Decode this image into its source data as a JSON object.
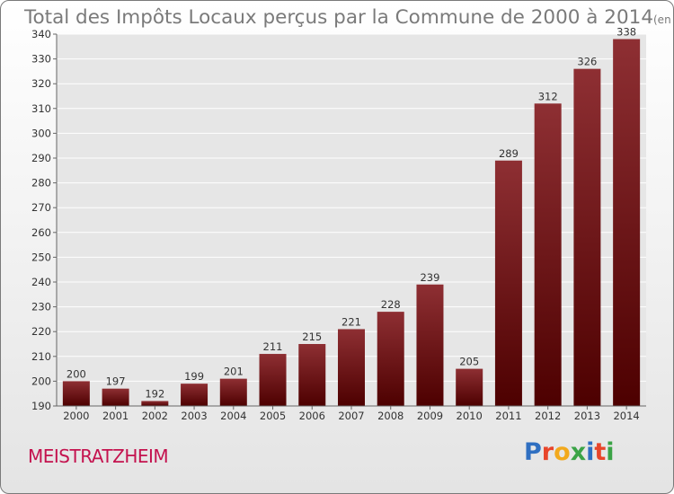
{
  "header": {
    "title": "Total des Impôts Locaux perçus par la Commune de 2000 à 2014",
    "unit_note": "(en milliers d'€)"
  },
  "commune_name": "MEISTRATZHEIM",
  "logo": {
    "text": "Proxiti",
    "letter_colors": [
      "#2f6fc1",
      "#e8452a",
      "#f2a91d",
      "#3aa346",
      "#2f6fc1",
      "#e8452a",
      "#3aa346"
    ]
  },
  "colors": {
    "bar_top": "#8e2f33",
    "bar_bottom": "#4d0000",
    "grid": "#ffffff",
    "text": "#333333"
  },
  "chart_data": {
    "type": "bar",
    "title": "Total des Impôts Locaux perçus par la Commune de 2000 à 2014",
    "xlabel": "",
    "ylabel": "",
    "categories": [
      "2000",
      "2001",
      "2002",
      "2003",
      "2004",
      "2005",
      "2006",
      "2007",
      "2008",
      "2009",
      "2010",
      "2011",
      "2012",
      "2013",
      "2014"
    ],
    "values": [
      200,
      197,
      192,
      199,
      201,
      211,
      215,
      221,
      228,
      239,
      205,
      289,
      312,
      326,
      338
    ],
    "ylim": [
      190,
      340
    ],
    "yticks": [
      190,
      200,
      210,
      220,
      230,
      240,
      250,
      260,
      270,
      280,
      290,
      300,
      310,
      320,
      330,
      340
    ],
    "grid": true,
    "data_labels": true
  }
}
